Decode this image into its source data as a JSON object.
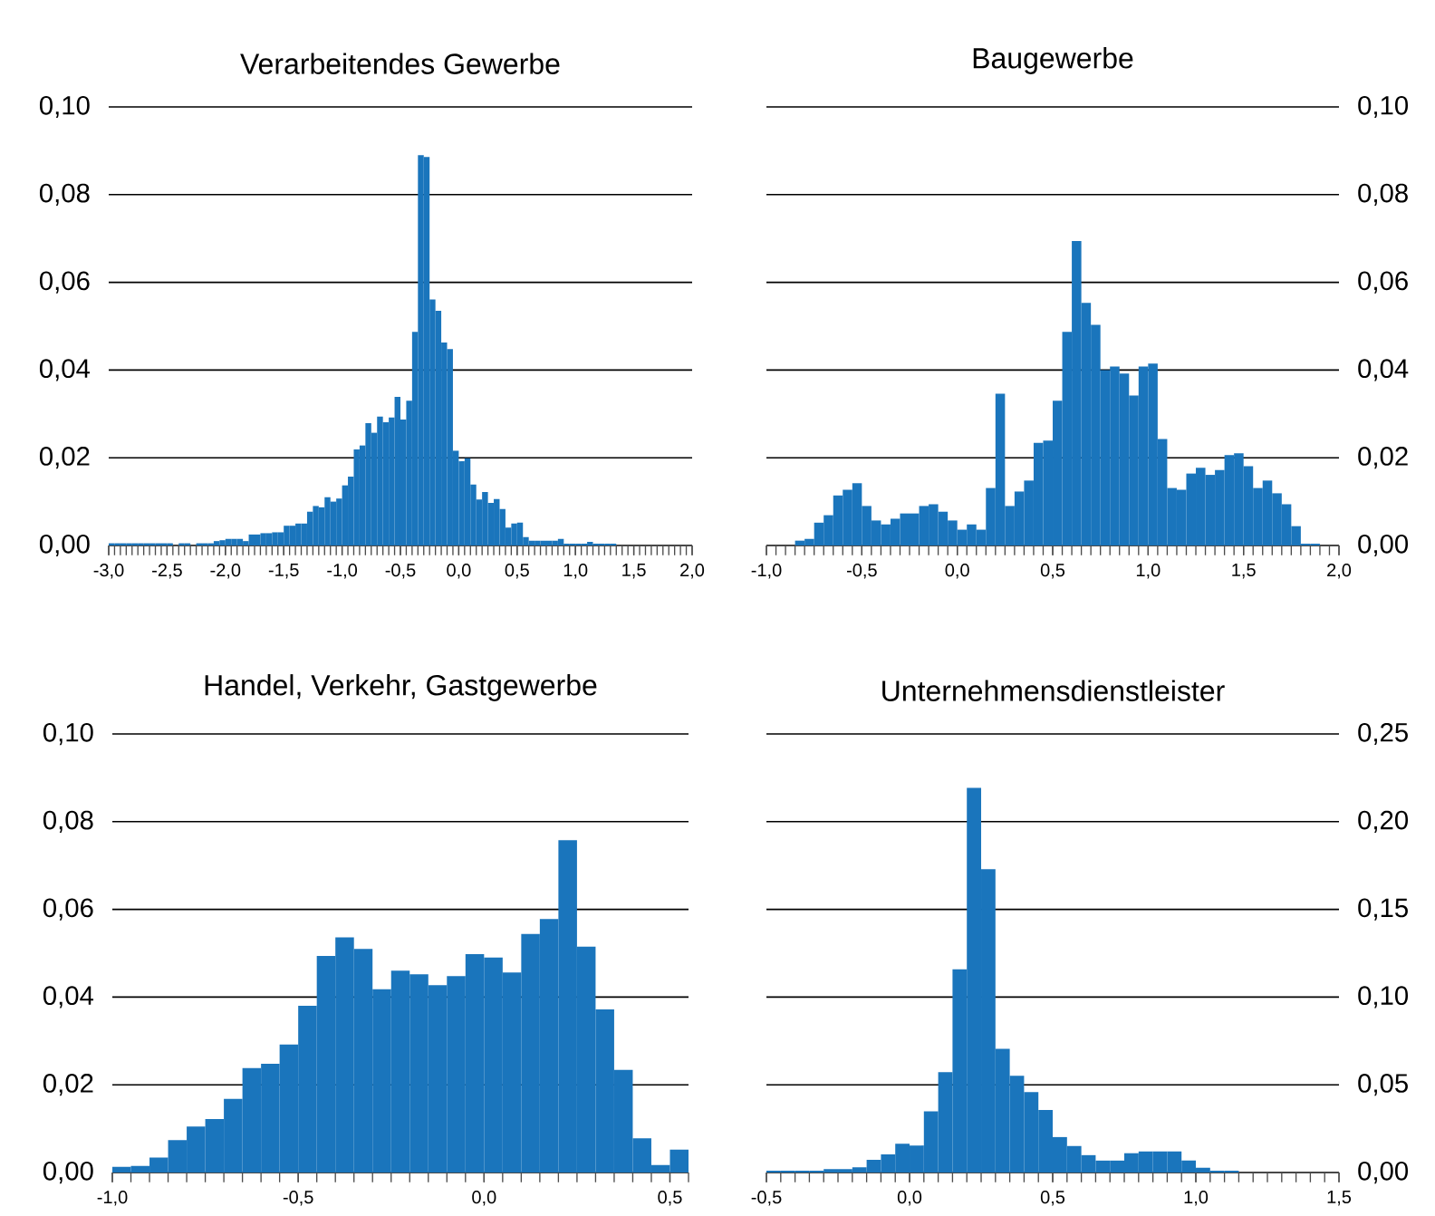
{
  "chart_data": [
    {
      "type": "histogram",
      "title": "Verarbeitendes Gewerbe",
      "color": "#1a75bc",
      "grid": "y",
      "bins": [
        -3,
        -2.95,
        -2.9,
        -2.85,
        -2.8,
        -2.75,
        -2.7,
        -2.65,
        -2.6,
        -2.55,
        -2.5,
        -2.45,
        -2.4,
        -2.35,
        -2.3,
        -2.25,
        -2.2,
        -2.15,
        -2.1,
        -2.05,
        -2,
        -1.95,
        -1.9,
        -1.85,
        -1.8,
        -1.75,
        -1.7,
        -1.65,
        -1.6,
        -1.55,
        -1.5,
        -1.45,
        -1.4,
        -1.35,
        -1.3,
        -1.25,
        -1.2,
        -1.15,
        -1.1,
        -1.05,
        -1,
        -0.95,
        -0.9,
        -0.85,
        -0.8,
        -0.75,
        -0.7,
        -0.65,
        -0.6,
        -0.55,
        -0.5,
        -0.45,
        -0.4,
        -0.35,
        -0.3,
        -0.25,
        -0.2,
        -0.15,
        -0.1,
        -0.05,
        0,
        0.05,
        0.1,
        0.15,
        0.2,
        0.25,
        0.3,
        0.35,
        0.4,
        0.45,
        0.5,
        0.55,
        0.6,
        0.65,
        0.7,
        0.75,
        0.8,
        0.85,
        0.9,
        0.95,
        1,
        1.05,
        1.1,
        1.15,
        1.2,
        1.25,
        1.3,
        1.35,
        1.4,
        1.45,
        1.5,
        1.55,
        1.6,
        1.65,
        1.7,
        1.75,
        1.8,
        1.85,
        1.9,
        1.95,
        2
      ],
      "values": [
        0.0005,
        0.0005,
        0.0005,
        0.0005,
        0.0005,
        0.0005,
        0.0005,
        0.0005,
        0.0005,
        0.0005,
        0.0005,
        0,
        0.0005,
        0.0005,
        0,
        0.0005,
        0.0005,
        0.0005,
        0.001,
        0.0012,
        0.0015,
        0.0015,
        0.0015,
        0.001,
        0.0025,
        0.0025,
        0.0028,
        0.0028,
        0.003,
        0.003,
        0.0045,
        0.0045,
        0.005,
        0.005,
        0.0077,
        0.009,
        0.0087,
        0.011,
        0.01,
        0.0107,
        0.0137,
        0.0157,
        0.0219,
        0.0228,
        0.0279,
        0.0257,
        0.0294,
        0.0281,
        0.0292,
        0.0339,
        0.0287,
        0.033,
        0.0487,
        0.089,
        0.0886,
        0.0561,
        0.0535,
        0.0463,
        0.0448,
        0.0216,
        0.0192,
        0.0199,
        0.0139,
        0.0105,
        0.0122,
        0.0097,
        0.0106,
        0.0083,
        0.0041,
        0.005,
        0.0052,
        0.0019,
        0.0011,
        0.0011,
        0.0011,
        0.0011,
        0.0011,
        0.0015,
        0.0004,
        0.0004,
        0.0004,
        0.0004,
        0.0008,
        0.0004,
        0.0004,
        0.0004,
        0.0004,
        0,
        0,
        0,
        0,
        0,
        0,
        0,
        0,
        0,
        0,
        0,
        0,
        0
      ],
      "xlim": [
        -3,
        2
      ],
      "ylim": [
        0,
        0.1
      ],
      "xticks": [
        {
          "value": -3,
          "label": "-3,0"
        },
        {
          "value": -2.5,
          "label": "-2,5"
        },
        {
          "value": -2,
          "label": "-2,0"
        },
        {
          "value": -1.5,
          "label": "-1,5"
        },
        {
          "value": -1,
          "label": "-1,0"
        },
        {
          "value": -0.5,
          "label": "-0,5"
        },
        {
          "value": 0,
          "label": "0,0"
        },
        {
          "value": 0.5,
          "label": "0,5"
        },
        {
          "value": 1,
          "label": "1,0"
        },
        {
          "value": 1.5,
          "label": "1,5"
        },
        {
          "value": 2,
          "label": "2,0"
        }
      ],
      "yticks": [
        {
          "value": 0,
          "label": "0,00"
        },
        {
          "value": 0.02,
          "label": "0,02"
        },
        {
          "value": 0.04,
          "label": "0,04"
        },
        {
          "value": 0.06,
          "label": "0,06"
        },
        {
          "value": 0.08,
          "label": "0,08"
        },
        {
          "value": 0.1,
          "label": "0,10"
        }
      ]
    },
    {
      "type": "histogram",
      "title": "Baugewerbe",
      "color": "#1a75bc",
      "grid": "y",
      "bins": [
        -1,
        -0.95,
        -0.9,
        -0.85,
        -0.8,
        -0.75,
        -0.7,
        -0.65,
        -0.6,
        -0.55,
        -0.5,
        -0.45,
        -0.4,
        -0.35,
        -0.3,
        -0.25,
        -0.2,
        -0.15,
        -0.1,
        -0.05,
        0,
        0.05,
        0.1,
        0.15,
        0.2,
        0.25,
        0.3,
        0.35,
        0.4,
        0.45,
        0.5,
        0.55,
        0.6,
        0.65,
        0.7,
        0.75,
        0.8,
        0.85,
        0.9,
        0.95,
        1,
        1.05,
        1.1,
        1.15,
        1.2,
        1.25,
        1.3,
        1.35,
        1.4,
        1.45,
        1.5,
        1.55,
        1.6,
        1.65,
        1.7,
        1.75,
        1.8,
        1.85,
        1.9,
        1.95,
        2
      ],
      "values": [
        0,
        0,
        0,
        0.0011,
        0.0015,
        0.0052,
        0.0069,
        0.0114,
        0.0127,
        0.0142,
        0.009,
        0.0057,
        0.0048,
        0.0061,
        0.0073,
        0.0073,
        0.009,
        0.0094,
        0.0077,
        0.0057,
        0.0036,
        0.0048,
        0.0036,
        0.0131,
        0.0346,
        0.009,
        0.0123,
        0.0148,
        0.0234,
        0.0239,
        0.033,
        0.0487,
        0.0694,
        0.0553,
        0.0503,
        0.04,
        0.0408,
        0.0392,
        0.0342,
        0.0408,
        0.0415,
        0.0243,
        0.0131,
        0.0127,
        0.0164,
        0.0177,
        0.0161,
        0.0172,
        0.0206,
        0.021,
        0.0181,
        0.0131,
        0.0148,
        0.0119,
        0.0094,
        0.0044,
        0.0004,
        0.0004,
        0,
        0
      ],
      "xlim": [
        -1,
        2
      ],
      "ylim": [
        0,
        0.1
      ],
      "xticks": [
        {
          "value": -1,
          "label": "-1,0"
        },
        {
          "value": -0.5,
          "label": "-0,5"
        },
        {
          "value": 0,
          "label": "0,0"
        },
        {
          "value": 0.5,
          "label": "0,5"
        },
        {
          "value": 1,
          "label": "1,0"
        },
        {
          "value": 1.5,
          "label": "1,5"
        },
        {
          "value": 2,
          "label": "2,0"
        }
      ],
      "yticks": [
        {
          "value": 0,
          "label": "0,00"
        },
        {
          "value": 0.02,
          "label": "0,02"
        },
        {
          "value": 0.04,
          "label": "0,04"
        },
        {
          "value": 0.06,
          "label": "0,06"
        },
        {
          "value": 0.08,
          "label": "0,08"
        },
        {
          "value": 0.1,
          "label": "0,10"
        }
      ]
    },
    {
      "type": "histogram",
      "title": "Handel, Verkehr, Gastgewerbe",
      "color": "#1a75bc",
      "grid": "y",
      "bins": [
        -1,
        -0.95,
        -0.9,
        -0.85,
        -0.8,
        -0.75,
        -0.7,
        -0.65,
        -0.6,
        -0.55,
        -0.5,
        -0.45,
        -0.4,
        -0.35,
        -0.3,
        -0.25,
        -0.2,
        -0.15,
        -0.1,
        -0.05,
        0,
        0.05,
        0.1,
        0.15,
        0.2,
        0.25,
        0.3,
        0.35,
        0.4,
        0.45,
        0.5,
        0.55
      ],
      "values": [
        0.0013,
        0.0015,
        0.0034,
        0.0074,
        0.0105,
        0.0122,
        0.0168,
        0.0238,
        0.0248,
        0.0292,
        0.038,
        0.0494,
        0.0536,
        0.051,
        0.0418,
        0.046,
        0.0452,
        0.0427,
        0.0448,
        0.0498,
        0.049,
        0.0456,
        0.0544,
        0.0578,
        0.0758,
        0.0515,
        0.0372,
        0.0234,
        0.0078,
        0.0017,
        0.0052
      ],
      "xlim": [
        -1,
        0.55
      ],
      "ylim": [
        0,
        0.1
      ],
      "xticks": [
        {
          "value": -1,
          "label": "-1,0"
        },
        {
          "value": -0.5,
          "label": "-0,5"
        },
        {
          "value": 0,
          "label": "0,0"
        },
        {
          "value": 0.5,
          "label": "0,5"
        }
      ],
      "yticks": [
        {
          "value": 0,
          "label": "0,00"
        },
        {
          "value": 0.02,
          "label": "0,02"
        },
        {
          "value": 0.04,
          "label": "0,04"
        },
        {
          "value": 0.06,
          "label": "0,06"
        },
        {
          "value": 0.08,
          "label": "0,08"
        },
        {
          "value": 0.1,
          "label": "0,10"
        }
      ]
    },
    {
      "type": "histogram",
      "title": "Unternehmensdienstleister",
      "color": "#1a75bc",
      "grid": "y",
      "bins": [
        -0.5,
        -0.45,
        -0.4,
        -0.35,
        -0.3,
        -0.25,
        -0.2,
        -0.15,
        -0.1,
        -0.05,
        0,
        0.05,
        0.1,
        0.15,
        0.2,
        0.25,
        0.3,
        0.35,
        0.4,
        0.45,
        0.5,
        0.55,
        0.6,
        0.65,
        0.7,
        0.75,
        0.8,
        0.85,
        0.9,
        0.95,
        1,
        1.05,
        1.1,
        1.15,
        1.2,
        1.25,
        1.3,
        1.35,
        1.4,
        1.45,
        1.5
      ],
      "values": [
        0.001,
        0.001,
        0.001,
        0.001,
        0.002,
        0.002,
        0.003,
        0.0072,
        0.0103,
        0.0164,
        0.0154,
        0.0349,
        0.0572,
        0.1158,
        0.2192,
        0.1729,
        0.0705,
        0.0551,
        0.0459,
        0.0356,
        0.0202,
        0.0151,
        0.0099,
        0.0068,
        0.0068,
        0.011,
        0.012,
        0.012,
        0.012,
        0.0068,
        0.0027,
        0.001,
        0.001,
        0,
        0,
        0,
        0,
        0,
        0,
        0
      ],
      "xlim": [
        -0.5,
        1.5
      ],
      "ylim": [
        0,
        0.25
      ],
      "xticks": [
        {
          "value": -0.5,
          "label": "-0,5"
        },
        {
          "value": 0,
          "label": "0,0"
        },
        {
          "value": 0.5,
          "label": "0,5"
        },
        {
          "value": 1,
          "label": "1,0"
        },
        {
          "value": 1.5,
          "label": "1,5"
        }
      ],
      "yticks": [
        {
          "value": 0,
          "label": "0,00"
        },
        {
          "value": 0.05,
          "label": "0,05"
        },
        {
          "value": 0.1,
          "label": "0,10"
        },
        {
          "value": 0.15,
          "label": "0,15"
        },
        {
          "value": 0.2,
          "label": "0,20"
        },
        {
          "value": 0.25,
          "label": "0,25"
        }
      ]
    }
  ]
}
